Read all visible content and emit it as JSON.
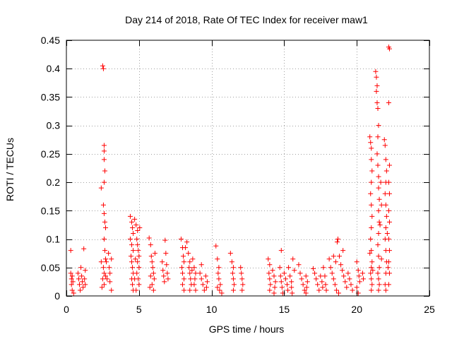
{
  "chart_data": {
    "type": "scatter",
    "title": "Day 214 of 2018, Rate Of TEC Index for receiver maw1",
    "xlabel": "GPS time / hours",
    "ylabel": "ROTI / TECUs",
    "xlim": [
      0,
      25
    ],
    "ylim": [
      0,
      0.45
    ],
    "grid": true,
    "marker": "+",
    "color": "#ff0000",
    "xticks": [
      0,
      5,
      10,
      15,
      20,
      25
    ],
    "xtick_labels": [
      "0",
      "5",
      "10",
      "15",
      "20",
      "25"
    ],
    "yticks": [
      0,
      0.05,
      0.1,
      0.15,
      0.2,
      0.25,
      0.3,
      0.35,
      0.4,
      0.45
    ],
    "ytick_labels": [
      "0",
      "0.05",
      "0.1",
      "0.15",
      "0.2",
      "0.25",
      "0.3",
      "0.35",
      "0.4",
      "0.45"
    ],
    "series": [
      {
        "name": "ROTI",
        "points": [
          [
            0.3,
            0.08
          ],
          [
            0.3,
            0.04
          ],
          [
            0.35,
            0.03
          ],
          [
            0.35,
            0.02
          ],
          [
            0.4,
            0.01
          ],
          [
            0.4,
            0.035
          ],
          [
            0.45,
            0.025
          ],
          [
            0.5,
            0.005
          ],
          [
            0.8,
            0.04
          ],
          [
            0.85,
            0.03
          ],
          [
            0.9,
            0.02
          ],
          [
            0.95,
            0.01
          ],
          [
            1.0,
            0.05
          ],
          [
            1.05,
            0.035
          ],
          [
            1.1,
            0.025
          ],
          [
            1.15,
            0.015
          ],
          [
            1.2,
            0.083
          ],
          [
            1.25,
            0.03
          ],
          [
            1.3,
            0.02
          ],
          [
            1.3,
            0.045
          ],
          [
            2.4,
            0.19
          ],
          [
            2.5,
            0.405
          ],
          [
            2.55,
            0.4
          ],
          [
            2.6,
            0.265
          ],
          [
            2.6,
            0.255
          ],
          [
            2.6,
            0.24
          ],
          [
            2.65,
            0.22
          ],
          [
            2.6,
            0.2
          ],
          [
            2.55,
            0.16
          ],
          [
            2.6,
            0.145
          ],
          [
            2.65,
            0.13
          ],
          [
            2.7,
            0.12
          ],
          [
            2.6,
            0.1
          ],
          [
            2.65,
            0.08
          ],
          [
            2.7,
            0.065
          ],
          [
            2.75,
            0.06
          ],
          [
            2.55,
            0.05
          ],
          [
            2.6,
            0.04
          ],
          [
            2.7,
            0.035
          ],
          [
            2.8,
            0.03
          ],
          [
            2.5,
            0.03
          ],
          [
            2.6,
            0.02
          ],
          [
            2.9,
            0.075
          ],
          [
            2.95,
            0.05
          ],
          [
            3.0,
            0.04
          ],
          [
            3.0,
            0.025
          ],
          [
            3.1,
            0.065
          ],
          [
            3.1,
            0.01
          ],
          [
            2.4,
            0.06
          ],
          [
            2.45,
            0.015
          ],
          [
            4.4,
            0.14
          ],
          [
            4.5,
            0.13
          ],
          [
            4.55,
            0.12
          ],
          [
            4.6,
            0.11
          ],
          [
            4.4,
            0.1
          ],
          [
            4.5,
            0.09
          ],
          [
            4.6,
            0.08
          ],
          [
            4.45,
            0.07
          ],
          [
            4.5,
            0.06
          ],
          [
            4.55,
            0.05
          ],
          [
            4.6,
            0.04
          ],
          [
            4.5,
            0.03
          ],
          [
            4.55,
            0.02
          ],
          [
            4.6,
            0.01
          ],
          [
            4.7,
            0.135
          ],
          [
            4.8,
            0.125
          ],
          [
            4.9,
            0.115
          ],
          [
            4.85,
            0.1
          ],
          [
            4.9,
            0.09
          ],
          [
            4.95,
            0.08
          ],
          [
            5.0,
            0.07
          ],
          [
            4.9,
            0.06
          ],
          [
            5.0,
            0.05
          ],
          [
            4.85,
            0.04
          ],
          [
            4.95,
            0.03
          ],
          [
            5.0,
            0.02
          ],
          [
            4.8,
            0.01
          ],
          [
            5.05,
            0.12
          ],
          [
            4.75,
            0.065
          ],
          [
            4.7,
            0.03
          ],
          [
            5.7,
            0.102
          ],
          [
            5.8,
            0.09
          ],
          [
            5.85,
            0.07
          ],
          [
            5.9,
            0.06
          ],
          [
            5.95,
            0.05
          ],
          [
            6.0,
            0.04
          ],
          [
            6.05,
            0.03
          ],
          [
            5.9,
            0.02
          ],
          [
            6.0,
            0.01
          ],
          [
            6.1,
            0.075
          ],
          [
            5.8,
            0.035
          ],
          [
            5.75,
            0.015
          ],
          [
            6.6,
            0.06
          ],
          [
            6.65,
            0.045
          ],
          [
            6.7,
            0.035
          ],
          [
            6.8,
            0.098
          ],
          [
            6.75,
            0.025
          ],
          [
            6.9,
            0.055
          ],
          [
            6.95,
            0.04
          ],
          [
            7.0,
            0.03
          ],
          [
            6.85,
            0.075
          ],
          [
            7.9,
            0.1
          ],
          [
            8.0,
            0.085
          ],
          [
            8.05,
            0.07
          ],
          [
            8.1,
            0.06
          ],
          [
            7.95,
            0.05
          ],
          [
            8.0,
            0.04
          ],
          [
            8.1,
            0.03
          ],
          [
            8.0,
            0.02
          ],
          [
            8.1,
            0.01
          ],
          [
            8.3,
            0.095
          ],
          [
            8.4,
            0.075
          ],
          [
            8.5,
            0.06
          ],
          [
            8.45,
            0.05
          ],
          [
            8.5,
            0.04
          ],
          [
            8.55,
            0.03
          ],
          [
            8.6,
            0.02
          ],
          [
            8.5,
            0.01
          ],
          [
            8.7,
            0.065
          ],
          [
            8.8,
            0.05
          ],
          [
            8.9,
            0.04
          ],
          [
            8.85,
            0.03
          ],
          [
            8.8,
            0.02
          ],
          [
            8.9,
            0.01
          ],
          [
            8.2,
            0.085
          ],
          [
            8.65,
            0.045
          ],
          [
            9.2,
            0.04
          ],
          [
            9.3,
            0.03
          ],
          [
            9.4,
            0.02
          ],
          [
            9.5,
            0.01
          ],
          [
            9.6,
            0.035
          ],
          [
            9.7,
            0.025
          ],
          [
            9.65,
            0.015
          ],
          [
            9.3,
            0.055
          ],
          [
            10.3,
            0.088
          ],
          [
            10.4,
            0.065
          ],
          [
            10.5,
            0.05
          ],
          [
            10.45,
            0.04
          ],
          [
            10.5,
            0.03
          ],
          [
            10.6,
            0.02
          ],
          [
            10.55,
            0.01
          ],
          [
            10.7,
            0.005
          ],
          [
            10.4,
            0.015
          ],
          [
            11.3,
            0.075
          ],
          [
            11.4,
            0.06
          ],
          [
            11.5,
            0.05
          ],
          [
            11.45,
            0.04
          ],
          [
            11.5,
            0.03
          ],
          [
            11.55,
            0.02
          ],
          [
            11.5,
            0.01
          ],
          [
            12.0,
            0.05
          ],
          [
            12.05,
            0.04
          ],
          [
            12.1,
            0.03
          ],
          [
            12.15,
            0.02
          ],
          [
            12.1,
            0.01
          ],
          [
            13.9,
            0.065
          ],
          [
            14.0,
            0.055
          ],
          [
            13.95,
            0.04
          ],
          [
            14.0,
            0.03
          ],
          [
            14.05,
            0.02
          ],
          [
            14.0,
            0.01
          ],
          [
            14.2,
            0.045
          ],
          [
            14.3,
            0.035
          ],
          [
            14.4,
            0.025
          ],
          [
            14.35,
            0.015
          ],
          [
            14.3,
            0.005
          ],
          [
            14.8,
            0.08
          ],
          [
            14.7,
            0.05
          ],
          [
            14.75,
            0.035
          ],
          [
            14.8,
            0.025
          ],
          [
            14.85,
            0.015
          ],
          [
            14.9,
            0.005
          ],
          [
            15.0,
            0.04
          ],
          [
            15.1,
            0.03
          ],
          [
            15.2,
            0.02
          ],
          [
            15.25,
            0.01
          ],
          [
            15.3,
            0.05
          ],
          [
            15.4,
            0.035
          ],
          [
            15.5,
            0.025
          ],
          [
            15.5,
            0.015
          ],
          [
            15.55,
            0.005
          ],
          [
            15.6,
            0.065
          ],
          [
            15.7,
            0.045
          ],
          [
            16.0,
            0.055
          ],
          [
            16.1,
            0.04
          ],
          [
            16.2,
            0.03
          ],
          [
            16.3,
            0.02
          ],
          [
            16.4,
            0.01
          ],
          [
            16.5,
            0.035
          ],
          [
            16.6,
            0.025
          ],
          [
            16.55,
            0.015
          ],
          [
            16.5,
            0.005
          ],
          [
            17.0,
            0.048
          ],
          [
            17.1,
            0.04
          ],
          [
            17.2,
            0.03
          ],
          [
            17.3,
            0.02
          ],
          [
            17.4,
            0.01
          ],
          [
            17.5,
            0.035
          ],
          [
            17.6,
            0.025
          ],
          [
            17.65,
            0.015
          ],
          [
            17.7,
            0.05
          ],
          [
            17.8,
            0.035
          ],
          [
            17.85,
            0.02
          ],
          [
            17.9,
            0.01
          ],
          [
            18.1,
            0.065
          ],
          [
            18.2,
            0.05
          ],
          [
            18.3,
            0.04
          ],
          [
            18.4,
            0.03
          ],
          [
            18.5,
            0.02
          ],
          [
            18.6,
            0.01
          ],
          [
            18.7,
            0.1
          ],
          [
            18.65,
            0.095
          ],
          [
            18.8,
            0.07
          ],
          [
            18.9,
            0.055
          ],
          [
            19.0,
            0.045
          ],
          [
            19.1,
            0.035
          ],
          [
            19.2,
            0.025
          ],
          [
            19.3,
            0.015
          ],
          [
            18.75,
            0.005
          ],
          [
            19.4,
            0.04
          ],
          [
            19.5,
            0.03
          ],
          [
            19.6,
            0.02
          ],
          [
            19.7,
            0.01
          ],
          [
            18.4,
            0.07
          ],
          [
            18.55,
            0.06
          ],
          [
            19.05,
            0.08
          ],
          [
            20.0,
            0.06
          ],
          [
            20.1,
            0.045
          ],
          [
            20.15,
            0.035
          ],
          [
            20.2,
            0.025
          ],
          [
            20.0,
            0.015
          ],
          [
            20.1,
            0.005
          ],
          [
            20.4,
            0.04
          ],
          [
            20.45,
            0.03
          ],
          [
            20.9,
            0.28
          ],
          [
            20.95,
            0.27
          ],
          [
            21.0,
            0.26
          ],
          [
            21.0,
            0.24
          ],
          [
            21.05,
            0.22
          ],
          [
            21.0,
            0.2
          ],
          [
            20.95,
            0.18
          ],
          [
            21.0,
            0.16
          ],
          [
            21.05,
            0.14
          ],
          [
            21.0,
            0.12
          ],
          [
            20.95,
            0.1
          ],
          [
            21.0,
            0.08
          ],
          [
            21.05,
            0.06
          ],
          [
            21.0,
            0.05
          ],
          [
            20.95,
            0.04
          ],
          [
            21.0,
            0.03
          ],
          [
            21.05,
            0.02
          ],
          [
            21.0,
            0.01
          ],
          [
            20.9,
            0.075
          ],
          [
            21.1,
            0.045
          ],
          [
            21.3,
            0.395
          ],
          [
            21.35,
            0.385
          ],
          [
            21.4,
            0.37
          ],
          [
            21.35,
            0.36
          ],
          [
            21.4,
            0.34
          ],
          [
            21.45,
            0.33
          ],
          [
            21.5,
            0.3
          ],
          [
            21.45,
            0.28
          ],
          [
            21.4,
            0.25
          ],
          [
            21.45,
            0.23
          ],
          [
            21.5,
            0.21
          ],
          [
            21.5,
            0.19
          ],
          [
            21.55,
            0.17
          ],
          [
            21.5,
            0.15
          ],
          [
            21.55,
            0.13
          ],
          [
            21.5,
            0.11
          ],
          [
            21.45,
            0.09
          ],
          [
            21.5,
            0.07
          ],
          [
            21.55,
            0.05
          ],
          [
            21.45,
            0.04
          ],
          [
            21.5,
            0.03
          ],
          [
            21.55,
            0.02
          ],
          [
            21.5,
            0.01
          ],
          [
            21.65,
            0.2
          ],
          [
            21.7,
            0.16
          ],
          [
            21.6,
            0.125
          ],
          [
            21.7,
            0.065
          ],
          [
            21.9,
            0.275
          ],
          [
            21.95,
            0.265
          ],
          [
            22.0,
            0.24
          ],
          [
            22.05,
            0.22
          ],
          [
            22.0,
            0.2
          ],
          [
            21.95,
            0.18
          ],
          [
            22.0,
            0.16
          ],
          [
            22.05,
            0.14
          ],
          [
            22.0,
            0.12
          ],
          [
            21.95,
            0.1
          ],
          [
            22.0,
            0.08
          ],
          [
            22.05,
            0.06
          ],
          [
            22.0,
            0.04
          ],
          [
            21.95,
            0.02
          ],
          [
            22.0,
            0.01
          ],
          [
            22.2,
            0.438
          ],
          [
            22.25,
            0.435
          ],
          [
            22.2,
            0.34
          ],
          [
            22.25,
            0.23
          ],
          [
            22.2,
            0.2
          ],
          [
            22.25,
            0.18
          ],
          [
            22.2,
            0.15
          ],
          [
            22.25,
            0.13
          ],
          [
            22.2,
            0.1
          ],
          [
            22.25,
            0.08
          ],
          [
            22.2,
            0.06
          ],
          [
            22.25,
            0.04
          ],
          [
            22.2,
            0.02
          ],
          [
            22.1,
            0.11
          ],
          [
            22.15,
            0.05
          ]
        ]
      }
    ]
  }
}
